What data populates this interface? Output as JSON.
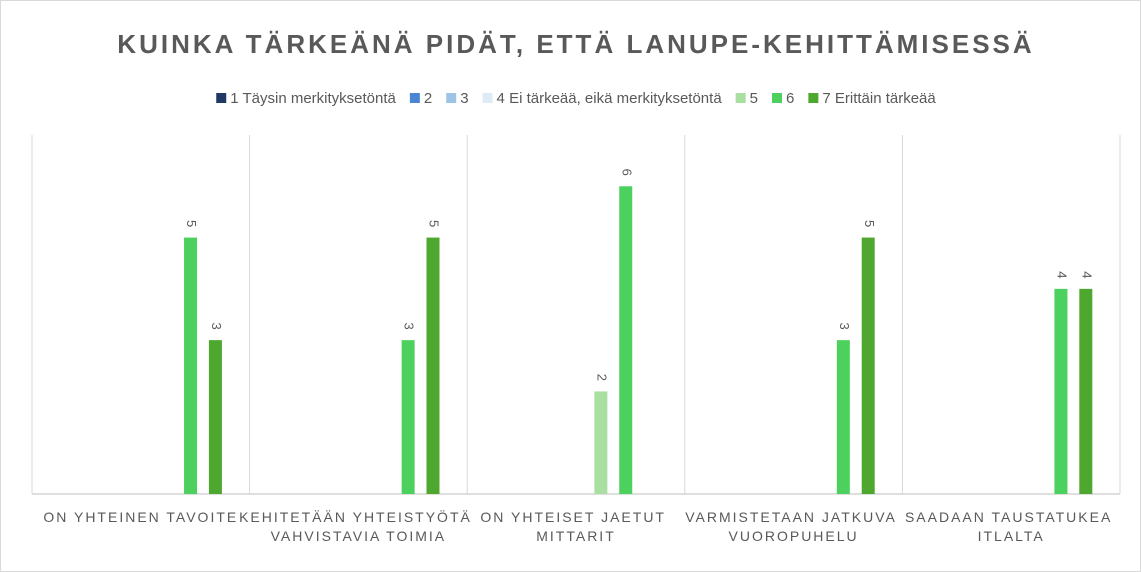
{
  "chart_data": {
    "type": "bar",
    "title": "KUINKA TÄRKEÄNÄ PIDÄT, ETTÄ LANUPE-KEHITTÄMISESSÄ",
    "categories": [
      "ON YHTEINEN TAVOITE",
      "KEHITETÄÄN YHTEISTYÖTÄ VAHVISTAVIA TOIMIA",
      "ON YHTEISET JAETUT MITTARIT",
      "VARMISTETAAN JATKUVA VUOROPUHELU",
      "SAADAAN TAUSTATUKEA ITLALTA"
    ],
    "series": [
      {
        "name": "1 Täysin merkityksetöntä",
        "color": "#1f3864",
        "values": [
          null,
          null,
          null,
          null,
          null
        ]
      },
      {
        "name": "2",
        "color": "#4a86d4",
        "values": [
          null,
          null,
          null,
          null,
          null
        ]
      },
      {
        "name": "3",
        "color": "#9dc3e6",
        "values": [
          null,
          null,
          null,
          null,
          null
        ]
      },
      {
        "name": "4 Ei tärkeää, eikä merkityksetöntä",
        "color": "#deebf7",
        "values": [
          null,
          null,
          null,
          null,
          null
        ]
      },
      {
        "name": "5",
        "color": "#a9dfa0",
        "values": [
          null,
          null,
          2,
          null,
          null
        ]
      },
      {
        "name": "6",
        "color": "#4cd15e",
        "values": [
          5,
          3,
          6,
          3,
          4
        ]
      },
      {
        "name": "7 Erittäin tärkeää",
        "color": "#4ea72e",
        "values": [
          3,
          5,
          null,
          5,
          4
        ]
      }
    ],
    "ylim": [
      0,
      7
    ]
  }
}
